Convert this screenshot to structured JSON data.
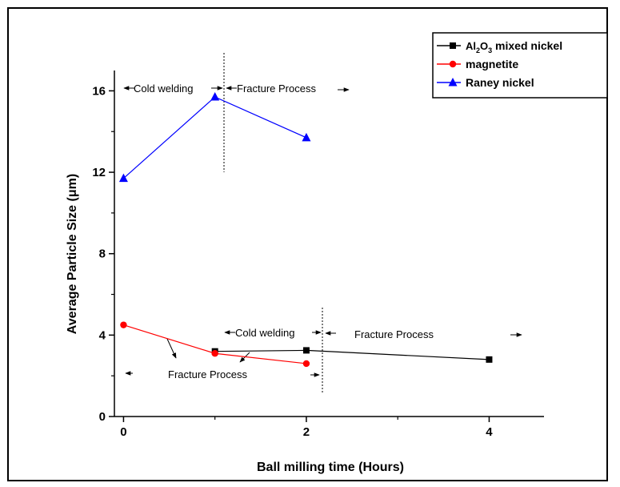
{
  "chart_data": {
    "type": "line",
    "xlabel": "Ball milling time (Hours)",
    "ylabel": "Average Particle Size (μm)",
    "xlim": [
      -0.1,
      4.6
    ],
    "ylim": [
      0,
      17
    ],
    "xticks": [
      0,
      2,
      4
    ],
    "yticks": [
      0,
      4,
      8,
      12,
      16
    ],
    "grid": false,
    "legend_position": "top-right",
    "series": [
      {
        "name": "Al2O3 mixed nickel",
        "legend_main": "Al",
        "legend_sub1": "2",
        "legend_mid": "O",
        "legend_sub2": "3",
        "legend_rest": " mixed nickel",
        "color": "#000000",
        "marker": "square",
        "x": [
          1,
          2,
          4
        ],
        "y": [
          3.2,
          3.25,
          2.8
        ]
      },
      {
        "name": "magnetite",
        "color": "#ff0000",
        "marker": "circle",
        "x": [
          0,
          1,
          2
        ],
        "y": [
          4.5,
          3.1,
          2.6
        ]
      },
      {
        "name": "Raney nickel",
        "color": "#0000ff",
        "marker": "triangle",
        "x": [
          0,
          1,
          2
        ],
        "y": [
          11.7,
          15.7,
          13.7
        ]
      }
    ],
    "annotations": {
      "upper_cold": "Cold welding",
      "upper_fracture": "Fracture Process",
      "lower_cold": "Cold welding",
      "lower_fracture_right": "Fracture Process",
      "lower_fracture_left": "Fracture Process"
    }
  }
}
